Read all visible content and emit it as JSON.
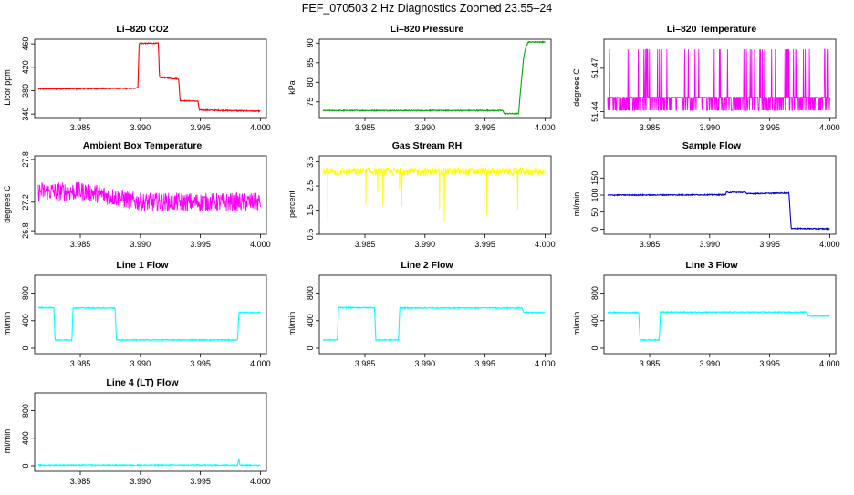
{
  "figure": {
    "title": "FEF_070503  2 Hz Diagnostics Zoomed 23.55–24"
  },
  "chart_data": [
    {
      "type": "line",
      "title": "Li–820 CO2",
      "ylabel": "Licor ppm",
      "color": "#ff0000",
      "xlim": [
        3.9812,
        4.0005
      ],
      "ylim": [
        334,
        468
      ],
      "xticks": [
        "3.985",
        "3.990",
        "3.995",
        "4.000"
      ],
      "yticks": [
        "340",
        "380",
        "420",
        "460"
      ],
      "x": [
        3.9815,
        3.9895,
        3.9898,
        3.9899,
        3.9915,
        3.9916,
        3.9932,
        3.9933,
        3.9948,
        3.9949,
        4.0
      ],
      "y": [
        383,
        384,
        386,
        461,
        461,
        403,
        400,
        363,
        362,
        347,
        345
      ]
    },
    {
      "type": "line",
      "title": "Li–820 Pressure",
      "ylabel": "kPa",
      "color": "#00aa00",
      "xlim": [
        3.9812,
        4.0005
      ],
      "ylim": [
        71,
        91
      ],
      "xticks": [
        "3.985",
        "3.990",
        "3.995",
        "4.000"
      ],
      "yticks": [
        "75",
        "80",
        "85",
        "90"
      ],
      "x": [
        3.9815,
        3.9965,
        3.9966,
        3.9978,
        3.9979,
        3.9982,
        3.9984,
        3.9986,
        4.0
      ],
      "y": [
        72.8,
        72.8,
        72.0,
        72.0,
        76,
        86,
        89,
        90.3,
        90.3
      ]
    },
    {
      "type": "line",
      "title": "Li–820 Temperature",
      "ylabel": "degrees C",
      "color": "#ff00ff",
      "xlim": [
        3.9812,
        4.0005
      ],
      "ylim": [
        51.436,
        51.49
      ],
      "xticks": [
        "3.985",
        "3.990",
        "3.995",
        "4.000"
      ],
      "yticks": [
        "51.44",
        "51.47"
      ],
      "x": [
        3.9815,
        4.0
      ],
      "y": [
        51.45,
        51.45
      ],
      "levels": [
        51.441,
        51.45,
        51.483
      ]
    },
    {
      "type": "line",
      "title": "Ambient Box Temperature",
      "ylabel": "degrees C",
      "color": "#ff00ff",
      "xlim": [
        3.9812,
        4.0005
      ],
      "ylim": [
        26.75,
        27.85
      ],
      "xticks": [
        "3.985",
        "3.990",
        "3.995",
        "4.000"
      ],
      "yticks": [
        "26.8",
        "27.2",
        "27.8"
      ],
      "x": [
        3.9815,
        3.9855,
        3.99,
        4.0
      ],
      "y": [
        27.35,
        27.35,
        27.2,
        27.2
      ]
    },
    {
      "type": "line",
      "title": "Gas Stream RH",
      "ylabel": "percent",
      "color": "#ffff00",
      "xlim": [
        3.9812,
        4.0005
      ],
      "ylim": [
        0.5,
        3.75
      ],
      "xticks": [
        "3.985",
        "3.990",
        "3.995",
        "4.000"
      ],
      "yticks": [
        "0.5",
        "1.5",
        "2.5",
        "3.5"
      ],
      "x": [
        3.9815,
        4.0
      ],
      "y": [
        3.1,
        3.1
      ]
    },
    {
      "type": "line",
      "title": "Sample Flow",
      "ylabel": "ml/min",
      "color": "#0000cc",
      "xlim": [
        3.9812,
        4.0005
      ],
      "ylim": [
        -15,
        215
      ],
      "xticks": [
        "3.985",
        "3.990",
        "3.995",
        "4.000"
      ],
      "yticks": [
        "0",
        "50",
        "100",
        "150"
      ],
      "x": [
        3.9815,
        3.9913,
        3.9914,
        3.993,
        3.9931,
        3.9966,
        3.9967,
        3.9968,
        4.0
      ],
      "y": [
        100,
        101,
        108,
        108,
        104,
        106,
        50,
        2,
        1
      ]
    },
    {
      "type": "line",
      "title": "Line 1 Flow",
      "ylabel": "ml/min",
      "color": "#00ffff",
      "xlim": [
        3.9812,
        4.0005
      ],
      "ylim": [
        -80,
        1060
      ],
      "xticks": [
        "3.985",
        "3.990",
        "3.995",
        "4.000"
      ],
      "yticks": [
        "0",
        "400",
        "800"
      ],
      "x": [
        3.9815,
        3.9828,
        3.9829,
        3.9843,
        3.9844,
        3.9879,
        3.988,
        3.9981,
        3.9982,
        4.0
      ],
      "y": [
        590,
        590,
        120,
        120,
        585,
        585,
        120,
        120,
        520,
        520
      ]
    },
    {
      "type": "line",
      "title": "Line 2 Flow",
      "ylabel": "ml/min",
      "color": "#00ffff",
      "xlim": [
        3.9812,
        4.0005
      ],
      "ylim": [
        -80,
        1060
      ],
      "xticks": [
        "3.985",
        "3.990",
        "3.995",
        "4.000"
      ],
      "yticks": [
        "0",
        "400",
        "800"
      ],
      "x": [
        3.9815,
        3.9827,
        3.9828,
        3.9858,
        3.9859,
        3.9878,
        3.9879,
        3.9981,
        3.9982,
        4.0
      ],
      "y": [
        120,
        120,
        590,
        590,
        120,
        120,
        585,
        585,
        520,
        520
      ]
    },
    {
      "type": "line",
      "title": "Line 3 Flow",
      "ylabel": "ml/min",
      "color": "#00ffff",
      "xlim": [
        3.9812,
        4.0005
      ],
      "ylim": [
        -80,
        1060
      ],
      "xticks": [
        "3.985",
        "3.990",
        "3.995",
        "4.000"
      ],
      "yticks": [
        "0",
        "400",
        "800"
      ],
      "x": [
        3.9815,
        3.9841,
        3.9842,
        3.9858,
        3.9859,
        3.9981,
        3.9982,
        4.0
      ],
      "y": [
        520,
        520,
        120,
        120,
        525,
        525,
        470,
        470
      ]
    },
    {
      "type": "line",
      "title": "Line 4 (LT) Flow",
      "ylabel": "ml/min",
      "color": "#00ffff",
      "xlim": [
        3.9812,
        4.0005
      ],
      "ylim": [
        -80,
        1060
      ],
      "xticks": [
        "3.985",
        "3.990",
        "3.995",
        "4.000"
      ],
      "yticks": [
        "0",
        "400",
        "800"
      ],
      "x": [
        3.9815,
        3.9981,
        3.9982,
        3.9983,
        4.0
      ],
      "y": [
        10,
        10,
        110,
        10,
        8
      ]
    }
  ]
}
